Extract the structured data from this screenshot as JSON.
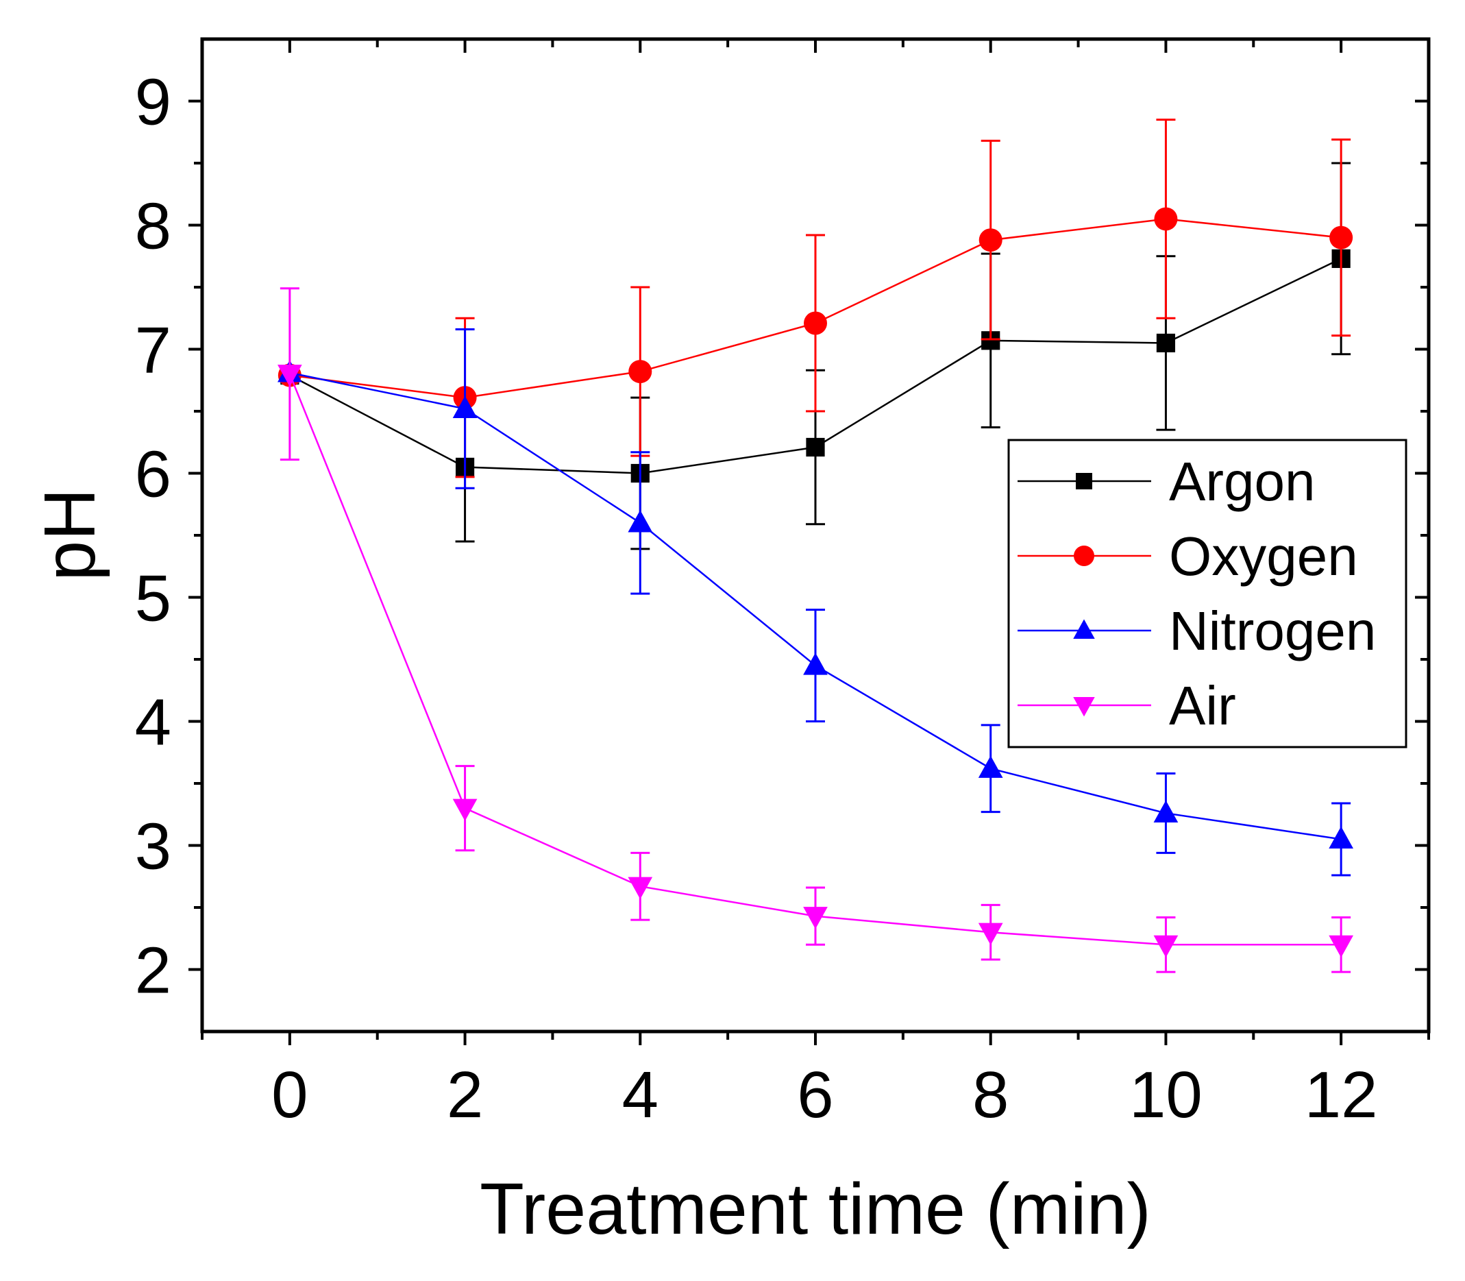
{
  "chart_data": {
    "type": "line",
    "title": "",
    "xlabel": "Treatment time (min)",
    "ylabel": "pH",
    "xlim": [
      -1,
      13
    ],
    "ylim": [
      1.5,
      9.5
    ],
    "xticks": [
      0,
      2,
      4,
      6,
      8,
      10,
      12
    ],
    "yticks": [
      2,
      3,
      4,
      5,
      6,
      7,
      8,
      9
    ],
    "x": [
      0,
      2,
      4,
      6,
      8,
      10,
      12
    ],
    "legend_position": "right",
    "series": [
      {
        "name": "Argon",
        "color": "#000000",
        "marker": "square",
        "values": [
          6.79,
          6.05,
          6.0,
          6.21,
          7.07,
          7.05,
          7.73
        ],
        "errors": [
          0.05,
          0.6,
          0.61,
          0.62,
          0.7,
          0.7,
          0.77
        ]
      },
      {
        "name": "Oxygen",
        "color": "#ff0000",
        "marker": "circle",
        "values": [
          6.79,
          6.61,
          6.82,
          7.21,
          7.88,
          8.05,
          7.9
        ],
        "errors": [
          0.05,
          0.64,
          0.68,
          0.71,
          0.8,
          0.8,
          0.79
        ]
      },
      {
        "name": "Nitrogen",
        "color": "#0000ff",
        "marker": "triangle-up",
        "values": [
          6.81,
          6.52,
          5.6,
          4.45,
          3.62,
          3.26,
          3.05
        ],
        "errors": [
          0.05,
          0.64,
          0.57,
          0.45,
          0.35,
          0.32,
          0.29
        ]
      },
      {
        "name": "Air",
        "color": "#ff00ff",
        "marker": "triangle-down",
        "values": [
          6.8,
          3.3,
          2.67,
          2.43,
          2.3,
          2.2,
          2.2
        ],
        "errors": [
          0.69,
          0.34,
          0.27,
          0.23,
          0.22,
          0.22,
          0.22
        ]
      }
    ]
  }
}
